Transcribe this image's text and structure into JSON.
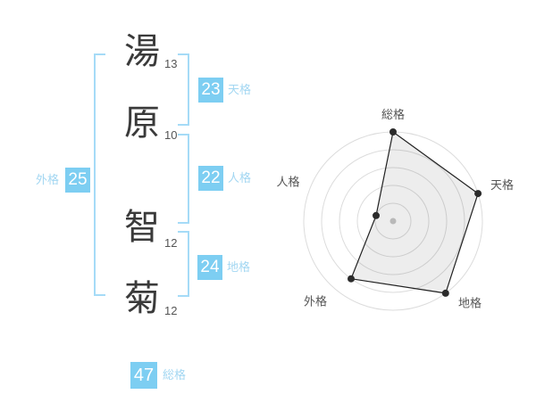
{
  "name_diagram": {
    "characters": [
      {
        "char": "湯",
        "strokes": "13"
      },
      {
        "char": "原",
        "strokes": "10"
      },
      {
        "char": "智",
        "strokes": "12"
      },
      {
        "char": "菊",
        "strokes": "12"
      }
    ],
    "gaikaku": {
      "value": "25",
      "label": "外格"
    },
    "tenkaku": {
      "value": "23",
      "label": "天格"
    },
    "jinkaku": {
      "value": "22",
      "label": "人格"
    },
    "chikaku": {
      "value": "24",
      "label": "地格"
    },
    "soukaku": {
      "value": "47",
      "label": "総格"
    }
  },
  "colors": {
    "box_blue": "#7dcef2",
    "bracket_blue": "#a5dbf7",
    "label_blue": "#a3d7f2",
    "kanji_gray": "#3a3a3a",
    "ring_gray": "#dcdcdc",
    "radar_line": "#222222",
    "radar_label_gray": "#555555"
  },
  "chart_data": {
    "type": "radar",
    "axes": [
      "総格",
      "天格",
      "地格",
      "外格",
      "人格"
    ],
    "values": [
      5,
      5,
      5,
      4,
      1
    ],
    "max": 5,
    "rings": 5,
    "raw_values": {
      "総格": 47,
      "天格": 23,
      "地格": 24,
      "外格": 25,
      "人格": 22
    },
    "legend_position": "none",
    "grid": "circular"
  }
}
